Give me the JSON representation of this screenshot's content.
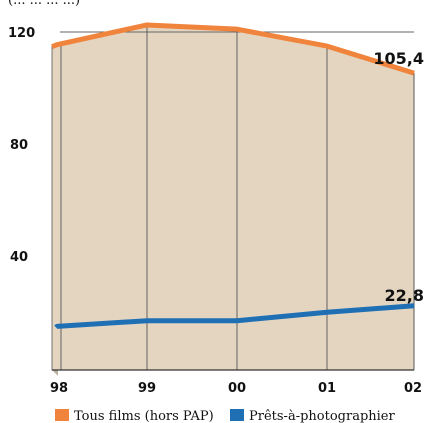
{
  "chart_data": {
    "type": "area",
    "subtitle_fragment": "(... ... ... ...)",
    "categories": [
      "98",
      "99",
      "00",
      "01",
      "02"
    ],
    "series": [
      {
        "name": "Tous films (hors PAP)",
        "color": "#f0843c",
        "values": [
          115.5,
          122.5,
          121,
          115,
          105.4
        ]
      },
      {
        "name": "Prêts-à-photographier",
        "color": "#1f6fb4",
        "values": [
          15.5,
          17.5,
          17.5,
          20.5,
          22.8
        ]
      }
    ],
    "data_labels": [
      "105,4",
      "22,8"
    ],
    "y_ticks": [
      "120",
      "80",
      "40"
    ],
    "ylim": [
      0,
      120
    ],
    "fill_color": "#e4d5c1",
    "grid": true,
    "legend_position": "bottom"
  }
}
